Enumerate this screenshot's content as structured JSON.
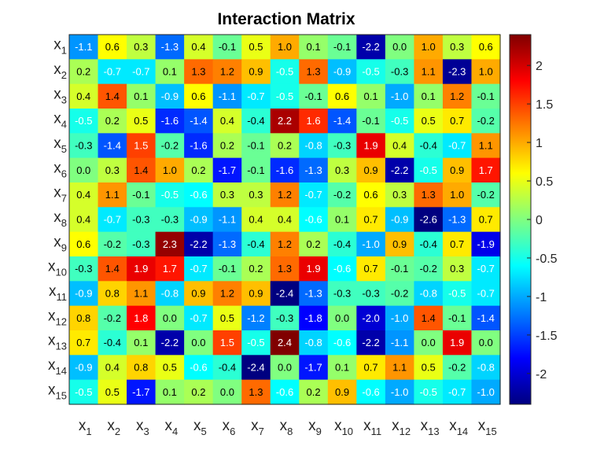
{
  "chart_data": {
    "type": "heatmap",
    "title": "Interaction Matrix",
    "rows": [
      "x1",
      "x2",
      "x3",
      "x4",
      "x5",
      "x6",
      "x7",
      "x8",
      "x9",
      "x10",
      "x11",
      "x12",
      "x13",
      "x14",
      "x15"
    ],
    "columns": [
      "x1",
      "x2",
      "x3",
      "x4",
      "x5",
      "x6",
      "x7",
      "x8",
      "x9",
      "x10",
      "x11",
      "x12",
      "x13",
      "x14",
      "x15"
    ],
    "label_symbol": "x",
    "label_subscripts": [
      "1",
      "2",
      "3",
      "4",
      "5",
      "6",
      "7",
      "8",
      "9",
      "10",
      "11",
      "12",
      "13",
      "14",
      "15"
    ],
    "values": [
      [
        -1.1,
        0.6,
        0.3,
        -1.3,
        0.4,
        -0.1,
        0.5,
        1.0,
        0.1,
        -0.1,
        -2.2,
        -0.0,
        1.0,
        0.3,
        0.6
      ],
      [
        0.2,
        -0.7,
        -0.7,
        0.1,
        1.3,
        1.2,
        0.9,
        -0.5,
        1.3,
        -0.9,
        -0.5,
        -0.3,
        1.1,
        -2.3,
        1.0
      ],
      [
        0.4,
        1.4,
        0.1,
        -0.9,
        0.6,
        -1.1,
        -0.7,
        -0.5,
        -0.1,
        0.6,
        0.1,
        -1.0,
        0.1,
        1.2,
        -0.1
      ],
      [
        -0.5,
        0.2,
        0.5,
        -1.6,
        -1.4,
        0.4,
        -0.4,
        2.2,
        1.6,
        -1.4,
        -0.1,
        -0.5,
        0.5,
        0.7,
        -0.2
      ],
      [
        -0.3,
        -1.4,
        1.5,
        -0.2,
        -1.6,
        0.2,
        -0.1,
        0.2,
        -0.8,
        -0.3,
        1.9,
        0.4,
        -0.4,
        -0.7,
        1.1
      ],
      [
        -0.0,
        0.3,
        1.4,
        1.0,
        0.2,
        -1.7,
        -0.1,
        -1.6,
        -1.3,
        0.3,
        0.9,
        -2.2,
        -0.5,
        0.9,
        1.7
      ],
      [
        0.4,
        1.1,
        -0.1,
        -0.5,
        -0.6,
        0.3,
        0.3,
        1.2,
        -0.7,
        -0.2,
        0.6,
        0.3,
        1.3,
        1.0,
        -0.2
      ],
      [
        0.4,
        -0.7,
        -0.3,
        -0.3,
        -0.9,
        -1.1,
        0.4,
        0.4,
        -0.6,
        0.1,
        0.7,
        -0.9,
        -2.6,
        -1.3,
        0.7
      ],
      [
        0.6,
        -0.2,
        -0.3,
        2.3,
        -2.2,
        -1.3,
        -0.4,
        1.2,
        0.2,
        -0.4,
        -1.0,
        0.9,
        -0.4,
        0.7,
        -1.9
      ],
      [
        -0.3,
        1.4,
        1.9,
        1.7,
        -0.7,
        -0.1,
        0.2,
        1.3,
        1.9,
        -0.6,
        0.7,
        -0.1,
        -0.2,
        0.3,
        -0.7
      ],
      [
        -0.9,
        0.8,
        1.1,
        -0.8,
        0.9,
        1.2,
        0.9,
        -2.4,
        -1.3,
        -0.3,
        -0.3,
        -0.2,
        -0.8,
        -0.5,
        -0.7
      ],
      [
        0.8,
        -0.2,
        1.8,
        0.0,
        -0.7,
        0.5,
        -1.2,
        -0.3,
        -1.8,
        0.0,
        -2.0,
        -1.0,
        1.4,
        -0.1,
        -1.4
      ],
      [
        0.7,
        -0.4,
        0.1,
        -2.2,
        -0.0,
        1.5,
        -0.5,
        2.4,
        -0.8,
        -0.6,
        -2.2,
        -1.1,
        -0.0,
        1.9,
        0.0
      ],
      [
        -0.9,
        0.4,
        0.8,
        0.5,
        -0.6,
        -0.4,
        -2.4,
        0.0,
        -1.7,
        0.1,
        0.7,
        1.1,
        0.5,
        -0.2,
        -0.8
      ],
      [
        -0.5,
        0.5,
        -1.7,
        0.1,
        0.2,
        0.0,
        1.3,
        -0.6,
        0.2,
        0.9,
        -0.6,
        -1.0,
        -0.5,
        -0.7,
        -1.0
      ]
    ],
    "colormap": "jet",
    "color_range": [
      -2.4,
      2.4
    ],
    "colorbar_ticks": [
      "2",
      "1.5",
      "1",
      "0.5",
      "0",
      "-0.5",
      "-1",
      "-1.5",
      "-2"
    ],
    "colorbar_tick_values": [
      2,
      1.5,
      1,
      0.5,
      0,
      -0.5,
      -1,
      -1.5,
      -2
    ],
    "colorbar_placement": "right",
    "grid": false
  }
}
